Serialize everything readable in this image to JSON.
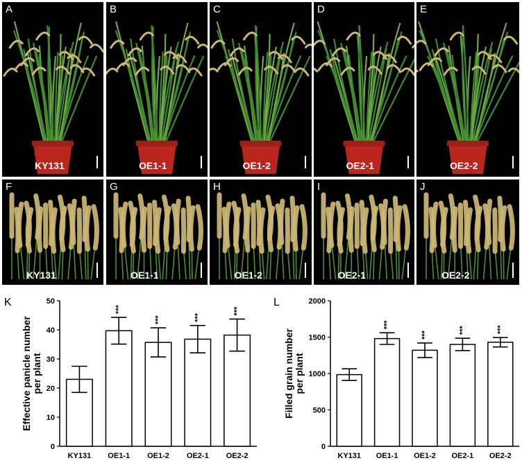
{
  "plant_panels": [
    {
      "letter": "A",
      "genotype": "KY131"
    },
    {
      "letter": "B",
      "genotype": "OE1-1"
    },
    {
      "letter": "C",
      "genotype": "OE1-2"
    },
    {
      "letter": "D",
      "genotype": "OE2-1"
    },
    {
      "letter": "E",
      "genotype": "OE2-2"
    }
  ],
  "panicle_panels": [
    {
      "letter": "F",
      "genotype": "KY131"
    },
    {
      "letter": "G",
      "genotype": "OE1-1"
    },
    {
      "letter": "H",
      "genotype": "OE1-2"
    },
    {
      "letter": "I",
      "genotype": "OE2-1"
    },
    {
      "letter": "J",
      "genotype": "OE2-2"
    }
  ],
  "colors": {
    "panel_bg": "#000000",
    "pot": "#b8261e",
    "leaf": "#3f8a2c",
    "panicle": "#cdb774"
  },
  "chart_data": [
    {
      "panel": "K",
      "type": "bar",
      "categories": [
        "KY131",
        "OE1-1",
        "OE1-2",
        "OE2-1",
        "OE2-2"
      ],
      "values": [
        23,
        39.7,
        35.7,
        36.8,
        38.2
      ],
      "errors": [
        4.5,
        4.6,
        5.0,
        4.7,
        5.5
      ],
      "significance": [
        "",
        "***",
        "***",
        "***",
        "***"
      ],
      "ylabel_line1": "Effective panicle number",
      "ylabel_line2": "per plant",
      "ylim": [
        0,
        50
      ],
      "yticks": [
        "0",
        "10",
        "20",
        "30",
        "40",
        "50"
      ]
    },
    {
      "panel": "L",
      "type": "bar",
      "categories": [
        "KY131",
        "OE1-1",
        "OE1-2",
        "OE2-1",
        "OE2-2"
      ],
      "values": [
        985,
        1480,
        1320,
        1400,
        1430
      ],
      "errors": [
        80,
        80,
        100,
        85,
        65
      ],
      "significance": [
        "",
        "***",
        "***",
        "***",
        "***"
      ],
      "ylabel_line1": "Filled grain number",
      "ylabel_line2": "per plant",
      "ylim": [
        0,
        2000
      ],
      "yticks": [
        "0",
        "500",
        "1000",
        "1500",
        "2000"
      ]
    }
  ]
}
